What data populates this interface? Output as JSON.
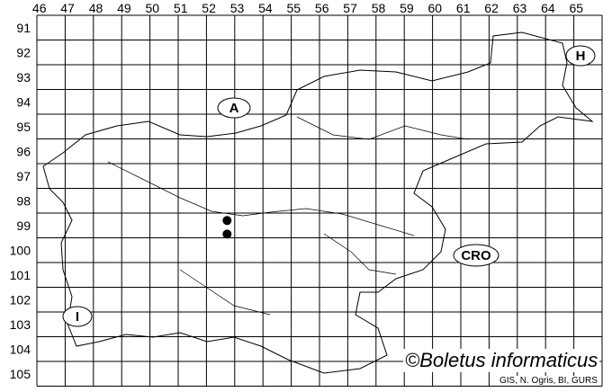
{
  "map": {
    "columns": [
      "46",
      "47",
      "48",
      "49",
      "50",
      "51",
      "52",
      "53",
      "54",
      "55",
      "56",
      "57",
      "58",
      "59",
      "60",
      "61",
      "62",
      "63",
      "64",
      "65"
    ],
    "rows": [
      "91",
      "92",
      "93",
      "94",
      "95",
      "96",
      "97",
      "98",
      "99",
      "100",
      "101",
      "102",
      "103",
      "104",
      "105"
    ],
    "country_labels": {
      "austria": "A",
      "hungary": "H",
      "croatia": "CRO",
      "italy": "I"
    },
    "records": [
      {
        "col": "52",
        "row": "99"
      },
      {
        "col": "52",
        "row": "99"
      }
    ],
    "record_color": "#000000",
    "credit": "©Boletus informaticus",
    "source": "GIS, N. Ogris, BI, GURS"
  }
}
